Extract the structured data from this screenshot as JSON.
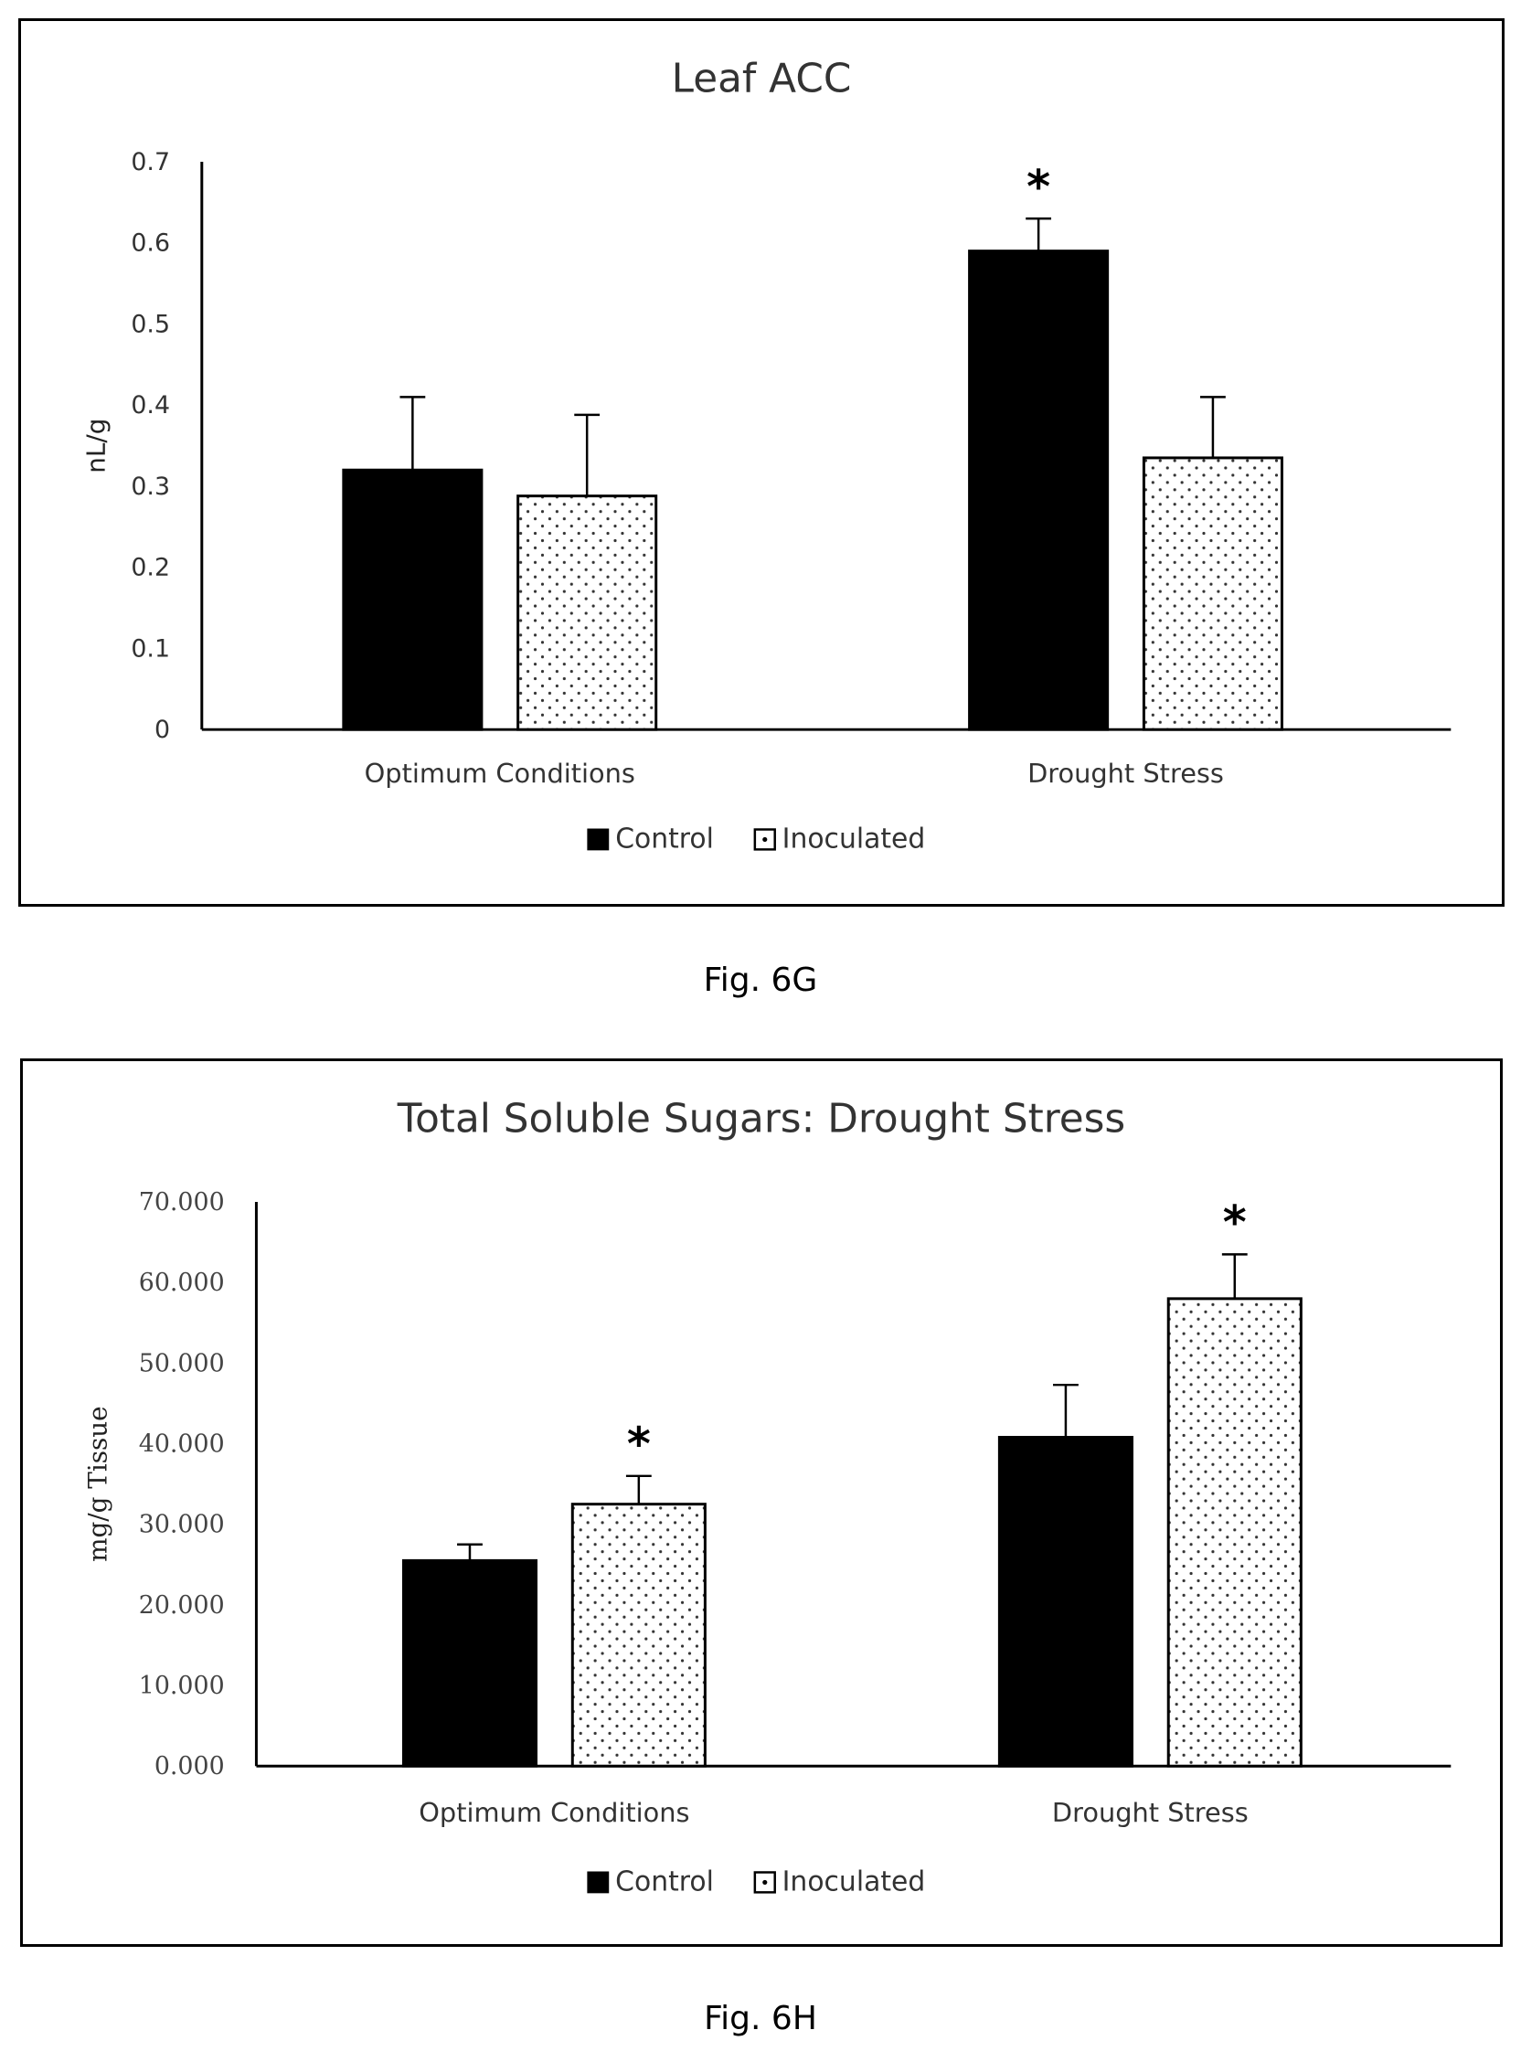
{
  "figures": [
    {
      "caption": "Fig. 6G",
      "chart_data": {
        "type": "bar",
        "title": "Leaf ACC",
        "xlabel": "",
        "ylabel": "nL/g",
        "ylim": [
          0,
          0.7
        ],
        "yticks": [
          "0",
          "0.1",
          "0.2",
          "0.3",
          "0.4",
          "0.5",
          "0.6",
          "0.7"
        ],
        "categories": [
          "Optimum Conditions",
          "Drought Stress"
        ],
        "series": [
          {
            "name": "Control",
            "values": [
              0.32,
              0.59
            ],
            "errors": [
              0.09,
              0.04
            ],
            "significant": [
              false,
              true
            ],
            "fill": "solid"
          },
          {
            "name": "Inoculated",
            "values": [
              0.288,
              0.335
            ],
            "errors": [
              0.1,
              0.075
            ],
            "significant": [
              false,
              false
            ],
            "fill": "dotted"
          }
        ],
        "significance_marker": "*",
        "legend_position": "bottom",
        "grid": false
      }
    },
    {
      "caption": "Fig. 6H",
      "chart_data": {
        "type": "bar",
        "title": "Total Soluble Sugars: Drought Stress",
        "xlabel": "",
        "ylabel": "mg/g Tissue",
        "ylim": [
          0,
          70
        ],
        "yticks": [
          "0.000",
          "10.000",
          "20.000",
          "30.000",
          "40.000",
          "50.000",
          "60.000",
          "70.000"
        ],
        "categories": [
          "Optimum Conditions",
          "Drought Stress"
        ],
        "series": [
          {
            "name": "Control",
            "values": [
              25.5,
              40.8
            ],
            "errors": [
              2.0,
              6.5
            ],
            "significant": [
              false,
              false
            ],
            "fill": "solid"
          },
          {
            "name": "Inoculated",
            "values": [
              32.5,
              58.0
            ],
            "errors": [
              3.5,
              5.5
            ],
            "significant": [
              true,
              true
            ],
            "fill": "dotted"
          }
        ],
        "significance_marker": "*",
        "legend_position": "bottom",
        "grid": false
      }
    }
  ]
}
